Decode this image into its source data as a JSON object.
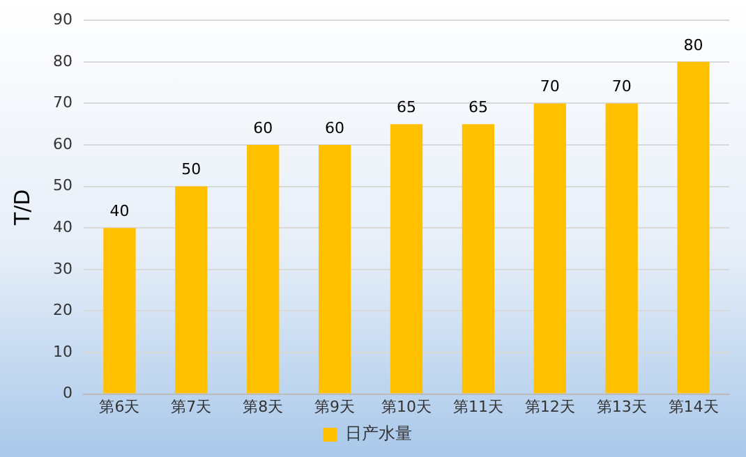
{
  "chart_data": {
    "type": "bar",
    "ylabel": "T/D",
    "categories": [
      "第6天",
      "第7天",
      "第8天",
      "第9天",
      "第10天",
      "第11天",
      "第12天",
      "第13天",
      "第14天"
    ],
    "series": [
      {
        "name": "日产水量",
        "color": "#ffc000",
        "values": [
          40,
          50,
          60,
          60,
          65,
          65,
          70,
          70,
          80
        ]
      }
    ],
    "ylim": [
      0,
      90
    ],
    "yticks": [
      0,
      10,
      20,
      30,
      40,
      50,
      60,
      70,
      80,
      90
    ],
    "grid": "y",
    "legend": "bottom",
    "data_labels": true
  }
}
